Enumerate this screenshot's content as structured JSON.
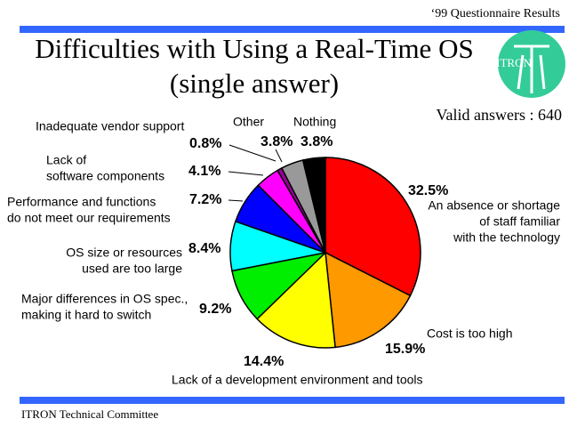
{
  "header": "‘99 Questionnaire Results",
  "footer": "ITRON Technical Committee",
  "logo": "ITRON",
  "chart_data": {
    "type": "pie",
    "title": [
      "Difficulties with Using a Real-Time OS",
      "(single answer)"
    ],
    "annotation": "Valid answers : 640",
    "categories": [
      [
        "An absence or shortage",
        "of staff familiar",
        "with the technology"
      ],
      [
        "Cost is too high"
      ],
      [
        "Lack of a development environment and tools"
      ],
      [
        "Major differences in OS spec.,",
        "making it hard to switch"
      ],
      [
        "OS size or resources",
        "used are too large"
      ],
      [
        "Performance and functions",
        "do not meet our requirements"
      ],
      [
        "Lack of",
        "software components"
      ],
      [
        "Inadequate vendor support"
      ],
      [
        "Other"
      ],
      [
        "Nothing"
      ]
    ],
    "values": [
      32.5,
      15.9,
      14.4,
      9.2,
      8.4,
      7.2,
      4.1,
      0.8,
      3.8,
      3.8
    ],
    "value_labels": [
      "32.5%",
      "15.9%",
      "14.4%",
      "9.2%",
      "8.4%",
      "7.2%",
      "4.1%",
      "0.8%",
      "3.8%",
      "3.8%"
    ],
    "colors": [
      "#ff0000",
      "#ff9900",
      "#ffff00",
      "#00ee00",
      "#00ffff",
      "#0000ff",
      "#ff00ff",
      "#990099",
      "#999999",
      "#000000"
    ]
  }
}
